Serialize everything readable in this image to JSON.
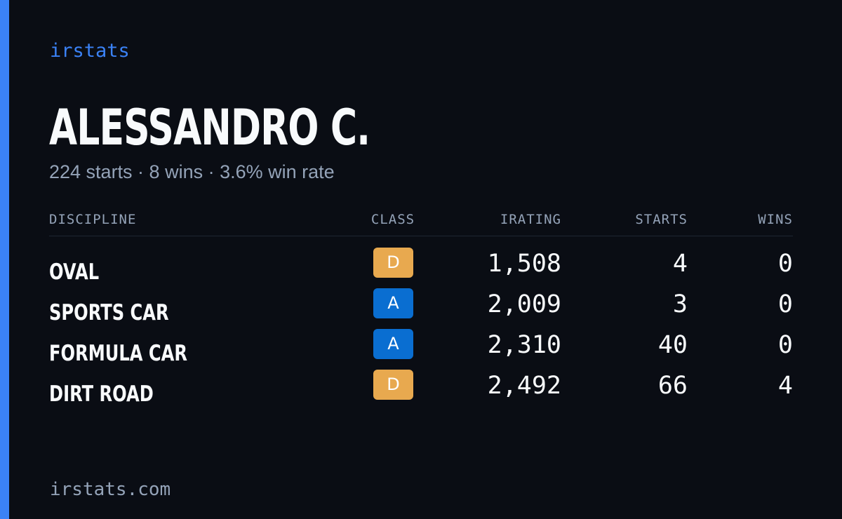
{
  "brand": "irstats",
  "driver": {
    "name": "ALESSANDRO C.",
    "summary": "224 starts · 8 wins · 3.6% win rate"
  },
  "table": {
    "headers": {
      "discipline": "DISCIPLINE",
      "class": "CLASS",
      "irating": "IRATING",
      "starts": "STARTS",
      "wins": "WINS"
    },
    "rows": [
      {
        "discipline": "OVAL",
        "class": "D",
        "irating": "1,508",
        "starts": "4",
        "wins": "0"
      },
      {
        "discipline": "SPORTS CAR",
        "class": "A",
        "irating": "2,009",
        "starts": "3",
        "wins": "0"
      },
      {
        "discipline": "FORMULA CAR",
        "class": "A",
        "irating": "2,310",
        "starts": "40",
        "wins": "0"
      },
      {
        "discipline": "DIRT ROAD",
        "class": "D",
        "irating": "2,492",
        "starts": "66",
        "wins": "4"
      }
    ]
  },
  "class_colors": {
    "A": "#0a6ed1",
    "D": "#e8a94f"
  },
  "accent_color": "#3b82f6",
  "footer": "irstats.com"
}
